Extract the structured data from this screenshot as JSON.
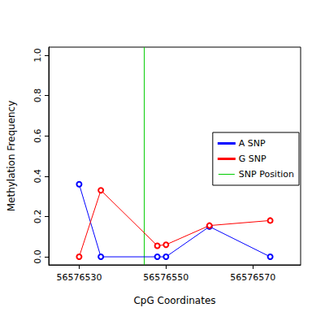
{
  "chart_data": {
    "type": "line",
    "x_label": "CpG Coordinates",
    "y_label": "Methylation Frequency",
    "x": [
      56576530,
      56576535,
      56576548,
      56576550,
      56576560,
      56576574
    ],
    "series": [
      {
        "name": "A SNP",
        "color": "#0000ff",
        "marker": "open_circle",
        "values": [
          0.36,
          0,
          0,
          0,
          0.15,
          0
        ]
      },
      {
        "name": "G SNP",
        "color": "#ff0000",
        "marker": "open_circle",
        "values": [
          0,
          0.33,
          0.055,
          0.06,
          0.155,
          0.18
        ]
      },
      {
        "name": "SNP Position",
        "type": "vline",
        "color": "#00cc00",
        "x": [
          56576545
        ]
      }
    ],
    "xlim": [
      56576523,
      56576581
    ],
    "xticks": [
      56576530,
      56576550,
      56576570
    ],
    "ylim": [
      -0.04,
      1.04
    ],
    "yticks": [
      {
        "value": 0,
        "label": "0.0"
      },
      0.2,
      0.4,
      0.6,
      0.8,
      {
        "value": 1,
        "label": "1.0"
      }
    ],
    "legend": "right",
    "grid": false
  }
}
